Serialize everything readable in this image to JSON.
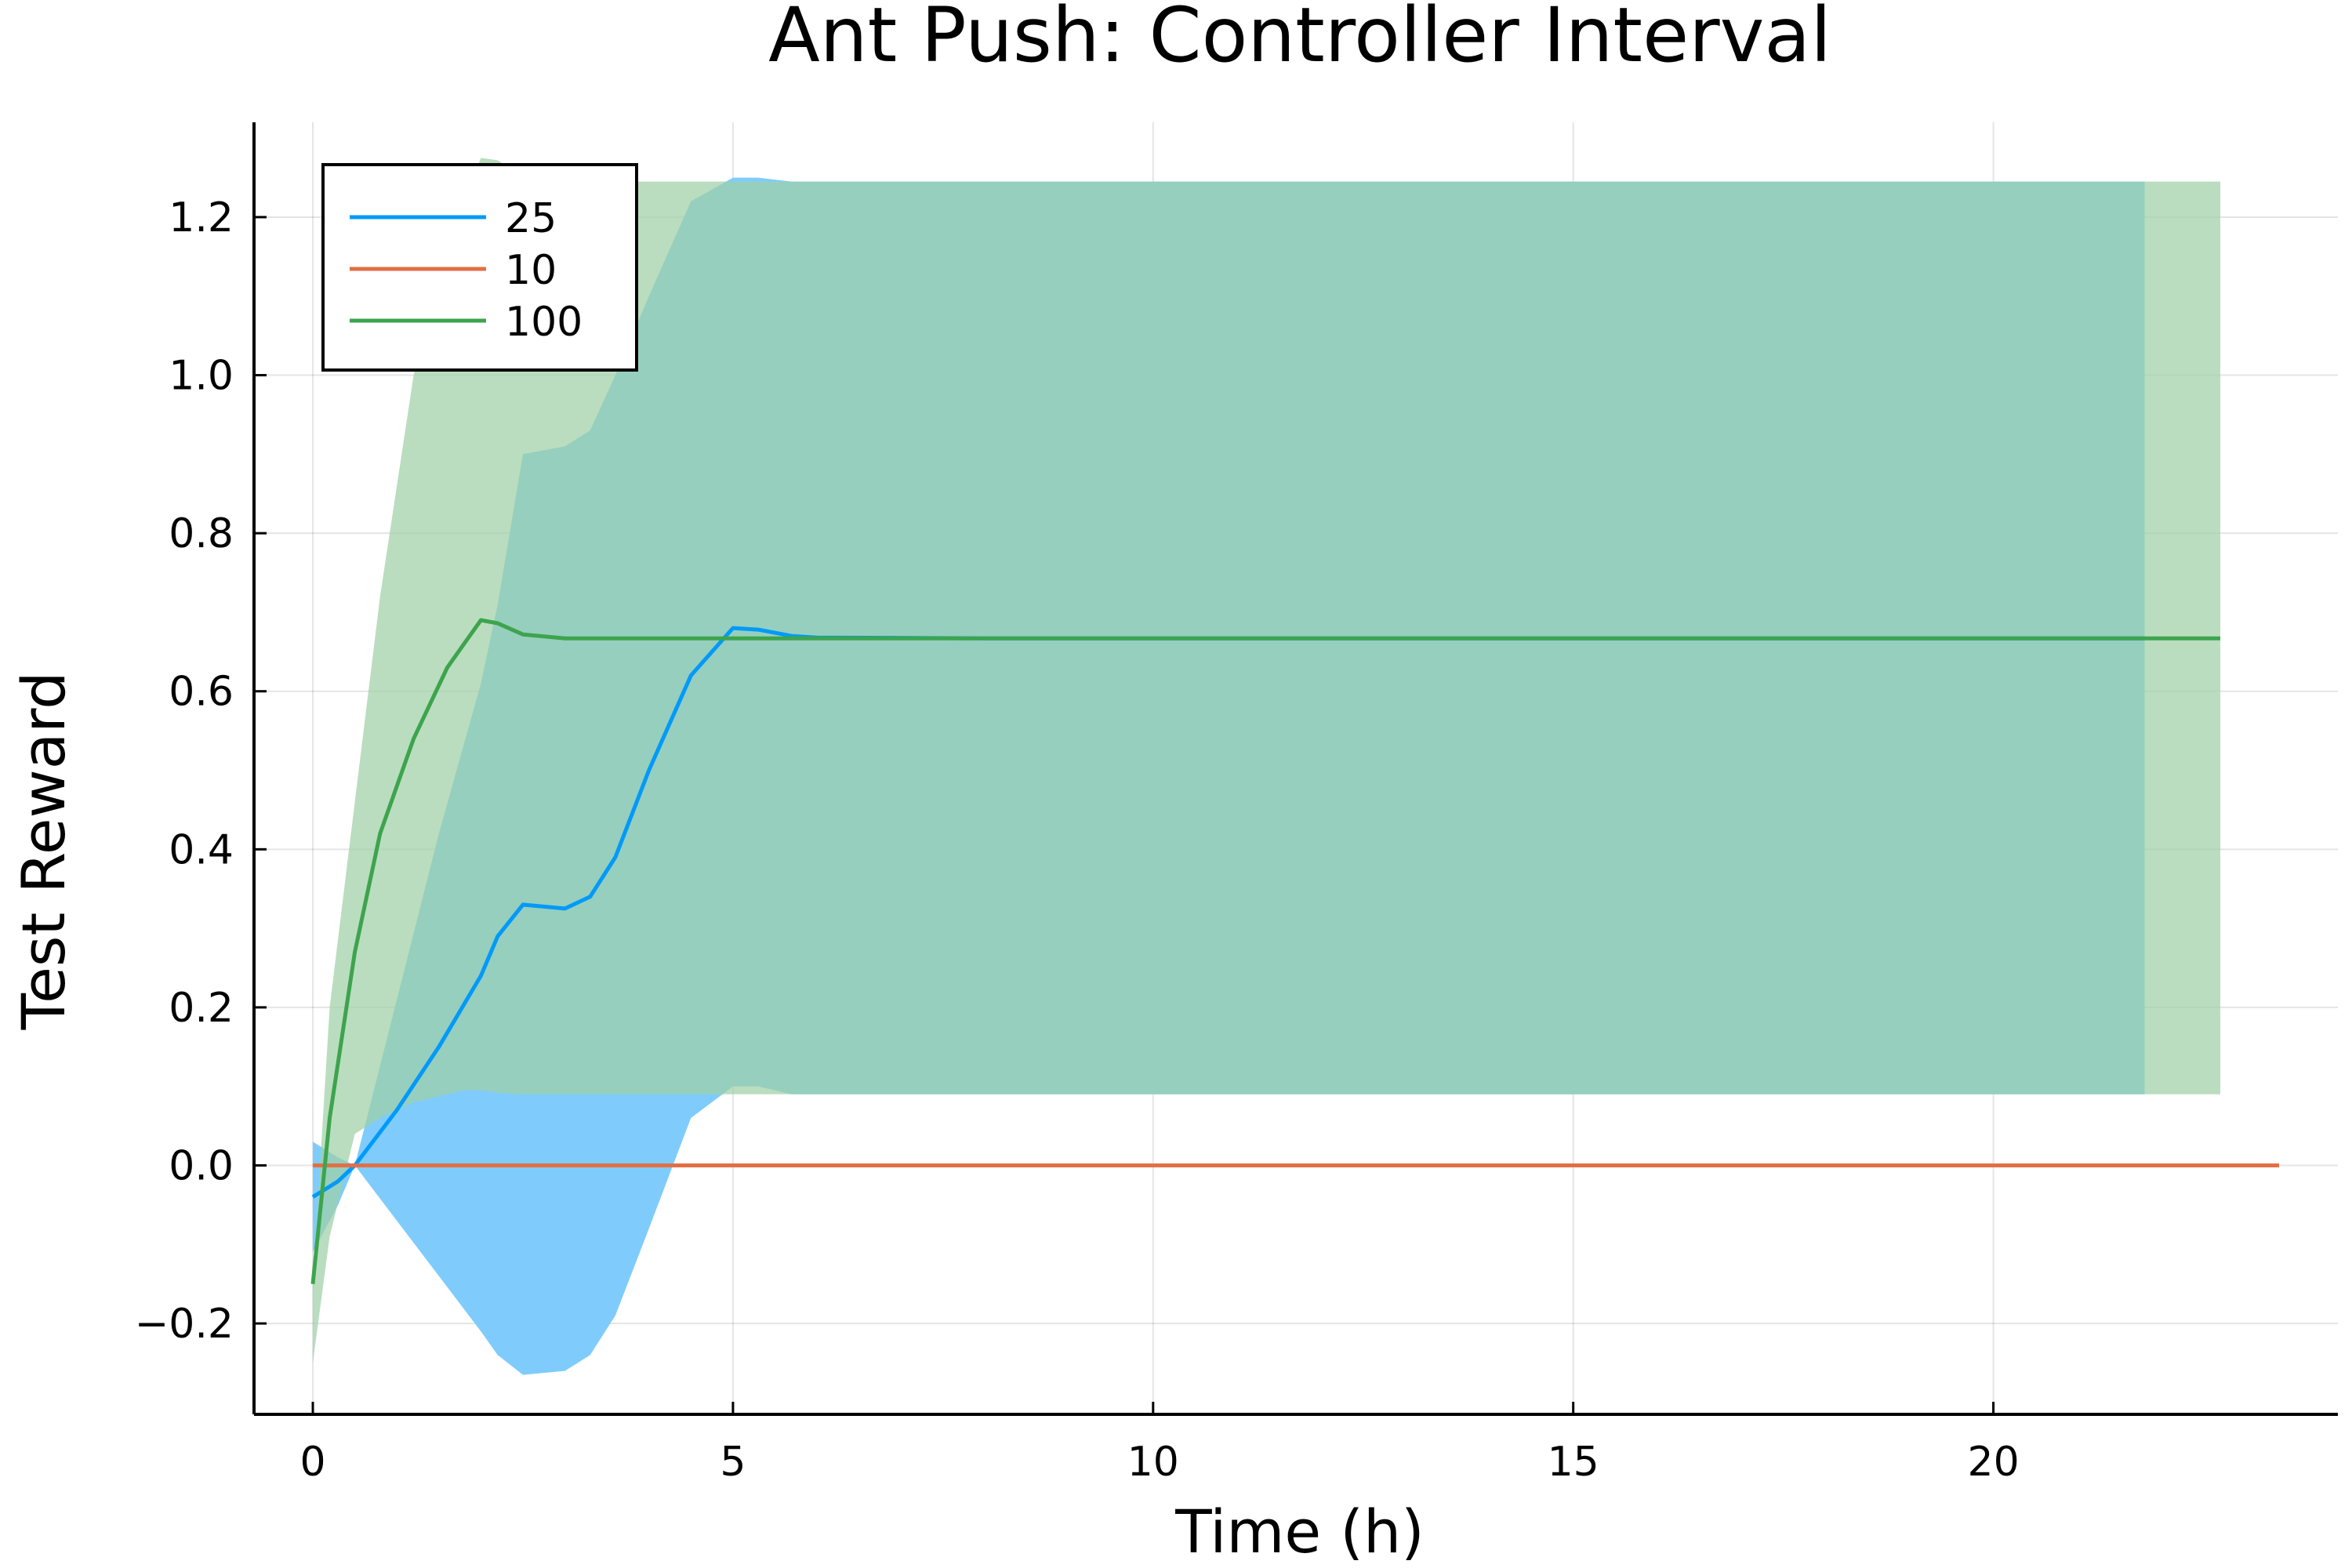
{
  "chart_data": {
    "type": "line",
    "title": "Ant Push: Controller Interval",
    "xlabel": "Time (h)",
    "ylabel": "Test Reward",
    "xlim": [
      -0.7,
      24.1
    ],
    "ylim": [
      -0.315,
      1.32
    ],
    "xticks": [
      0,
      5,
      10,
      15,
      20
    ],
    "xtick_labels": [
      "0",
      "5",
      "10",
      "15",
      "20"
    ],
    "yticks": [
      -0.2,
      0.0,
      0.2,
      0.4,
      0.6,
      0.8,
      1.0,
      1.2
    ],
    "ytick_labels": [
      "−0.2",
      "0.0",
      "0.2",
      "0.4",
      "0.6",
      "0.8",
      "1.0",
      "1.2"
    ],
    "grid": true,
    "legend_position": "top-left",
    "series": [
      {
        "name": "25",
        "color": "#009af9",
        "band_color": "#7fccfc",
        "x": [
          0,
          0.3,
          0.5,
          1.0,
          1.5,
          2.0,
          2.2,
          2.5,
          3.0,
          3.3,
          3.6,
          4.0,
          4.5,
          5.0,
          5.3,
          5.7,
          6.0,
          8,
          12,
          16,
          20,
          21.8
        ],
        "y": [
          -0.04,
          -0.02,
          0.0,
          0.07,
          0.15,
          0.24,
          0.29,
          0.33,
          0.325,
          0.34,
          0.39,
          0.5,
          0.62,
          0.68,
          0.678,
          0.67,
          0.668,
          0.667,
          0.667,
          0.667,
          0.667,
          0.667
        ],
        "upper": [
          0.03,
          0.01,
          0.0,
          0.21,
          0.42,
          0.61,
          0.71,
          0.9,
          0.91,
          0.93,
          1.0,
          1.1,
          1.22,
          1.25,
          1.25,
          1.245,
          1.245,
          1.245,
          1.245,
          1.245,
          1.245,
          1.245
        ],
        "lower": [
          -0.11,
          -0.05,
          0.0,
          -0.07,
          -0.14,
          -0.21,
          -0.24,
          -0.265,
          -0.26,
          -0.24,
          -0.19,
          -0.08,
          0.06,
          0.1,
          0.1,
          0.09,
          0.09,
          0.09,
          0.09,
          0.09,
          0.09,
          0.09
        ]
      },
      {
        "name": "10",
        "color": "#e26f46",
        "x": [
          0,
          5,
          10,
          15,
          20,
          23.4
        ],
        "y": [
          0,
          0,
          0,
          0,
          0,
          0
        ]
      },
      {
        "name": "100",
        "color": "#3da44d",
        "band_color": "#9fd0a6",
        "x": [
          0,
          0.2,
          0.5,
          0.8,
          1.2,
          1.6,
          1.8,
          2.0,
          2.2,
          2.5,
          3.0,
          4,
          6,
          10,
          15,
          20,
          22.7
        ],
        "y": [
          -0.15,
          0.06,
          0.27,
          0.42,
          0.54,
          0.63,
          0.66,
          0.69,
          0.686,
          0.672,
          0.667,
          0.667,
          0.667,
          0.667,
          0.667,
          0.667,
          0.667
        ],
        "upper": [
          -0.15,
          0.2,
          0.46,
          0.72,
          1.0,
          1.16,
          1.22,
          1.275,
          1.272,
          1.25,
          1.245,
          1.245,
          1.245,
          1.245,
          1.245,
          1.245,
          1.245
        ],
        "lower": [
          -0.25,
          -0.09,
          0.04,
          0.06,
          0.08,
          0.09,
          0.095,
          0.095,
          0.092,
          0.09,
          0.09,
          0.09,
          0.09,
          0.09,
          0.09,
          0.09,
          0.09
        ]
      }
    ]
  }
}
